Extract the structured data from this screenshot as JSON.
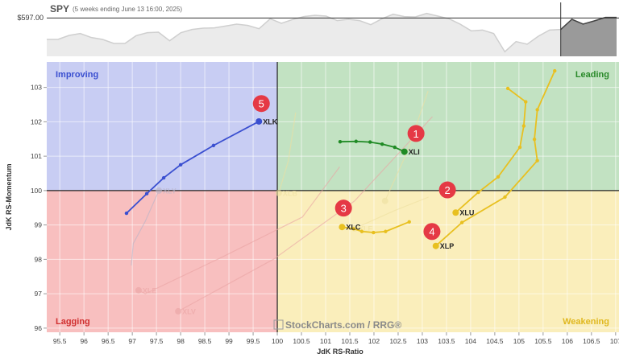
{
  "chart_data": {
    "type": "scatter",
    "subtype": "relative-rotation-graph",
    "benchmark": {
      "symbol": "SPY",
      "subtitle": "(5 weeks ending June 13 16:00, 2025)",
      "reference_label": "$597.00",
      "reference_value": 597,
      "prices": [
        581.0,
        581.0,
        584.0,
        585.4,
        582.4,
        581.0,
        578.0,
        578.0,
        583.8,
        586.0,
        586.4,
        580.0,
        586.0,
        588.4,
        589.4,
        589.6,
        591.0,
        592.4,
        591.4,
        589.0,
        596.4,
        593.0,
        595.8,
        598.0,
        599.0,
        598.4,
        595.0,
        596.0,
        595.0,
        592.0,
        596.4,
        599.8,
        598.0,
        597.8,
        600.4,
        598.4,
        596.4,
        592.4,
        587.4,
        588.0,
        585.4,
        571.8,
        579.4,
        577.4,
        583.4,
        588.0,
        588.4,
        596.0,
        592.4,
        594.8,
        597.4,
        597.4
      ],
      "highlight_from_index": 46
    },
    "xlabel": "JdK RS-Ratio",
    "ylabel": "JdK RS-Momentum",
    "xlim": [
      95.23,
      107.07
    ],
    "ylim": [
      95.88,
      103.74
    ],
    "center": [
      100,
      100
    ],
    "xticks": [
      "95.5",
      "96",
      "96.5",
      "97",
      "97.5",
      "98",
      "98.5",
      "99",
      "99.5",
      "100",
      "100.5",
      "101",
      "101.5",
      "102",
      "102.5",
      "103",
      "103.5",
      "104",
      "104.5",
      "105",
      "105.5",
      "106",
      "106.5",
      "107"
    ],
    "yticks": [
      "96",
      "97",
      "98",
      "99",
      "100",
      "101",
      "102",
      "103"
    ],
    "grid": true,
    "quadrants": {
      "improving": {
        "label": "Improving",
        "color": "#c8cdf3",
        "text_color": "#3a4fd0"
      },
      "leading": {
        "label": "Leading",
        "color": "#c2e2c2",
        "text_color": "#2a8a2a"
      },
      "lagging": {
        "label": "Lagging",
        "color": "#f8bfbf",
        "text_color": "#d03030"
      },
      "weakening": {
        "label": "Weakening",
        "color": "#faeebb",
        "text_color": "#e0b820"
      }
    },
    "watermark": "StockCharts.com / RRG®",
    "series": [
      {
        "name": "XLY",
        "faded": true,
        "color": "#b8b4c8",
        "points": [
          [
            96.98,
            97.82
          ],
          [
            97.02,
            98.46
          ],
          [
            97.27,
            99.11
          ],
          [
            97.55,
            100.0
          ]
        ]
      },
      {
        "name": "XLE",
        "faded": true,
        "color": "#eaa4a4",
        "points": [
          [
            101.29,
            100.69
          ],
          [
            100.52,
            99.23
          ],
          [
            98.85,
            98.06
          ],
          [
            97.27,
            97.0
          ],
          [
            97.13,
            97.1
          ]
        ]
      },
      {
        "name": "XLV",
        "faded": true,
        "color": "#eaa4a4",
        "points": [
          [
            103.21,
            102.15
          ],
          [
            101.6,
            99.7
          ],
          [
            99.93,
            98.01
          ],
          [
            97.95,
            96.49
          ]
        ]
      },
      {
        "name": "XLB",
        "faded": true,
        "color": "#eee0a0",
        "points": [
          [
            100.38,
            102.27
          ],
          [
            100.23,
            100.87
          ],
          [
            100.03,
            99.93
          ]
        ]
      },
      {
        "name": "XLF",
        "faded": true,
        "color": "#eee0a0",
        "points": [
          [
            103.13,
            99.81
          ],
          [
            102.43,
            99.42
          ],
          [
            101.6,
            98.9
          ]
        ]
      },
      {
        "name": "",
        "faded": true,
        "color": "#eee0a0",
        "points": [
          [
            103.12,
            102.9
          ],
          [
            102.68,
            101.1
          ],
          [
            102.23,
            99.7
          ]
        ]
      },
      {
        "name": "XLK",
        "faded": false,
        "color": "#3a4fd0",
        "points": [
          [
            96.88,
            99.34
          ],
          [
            97.3,
            99.91
          ],
          [
            97.65,
            100.37
          ],
          [
            98.0,
            100.75
          ],
          [
            98.68,
            101.31
          ],
          [
            99.62,
            102.01
          ]
        ]
      },
      {
        "name": "XLI",
        "faded": false,
        "color": "#1f8a24",
        "points": [
          [
            101.3,
            101.42
          ],
          [
            101.63,
            101.43
          ],
          [
            101.92,
            101.41
          ],
          [
            102.17,
            101.35
          ],
          [
            102.43,
            101.26
          ],
          [
            102.63,
            101.13
          ]
        ]
      },
      {
        "name": "XLC",
        "faded": false,
        "color": "#e8c020",
        "points": [
          [
            102.73,
            99.09
          ],
          [
            102.24,
            98.81
          ],
          [
            101.99,
            98.78
          ],
          [
            101.75,
            98.81
          ],
          [
            101.58,
            98.89
          ],
          [
            101.34,
            98.94
          ]
        ]
      },
      {
        "name": "XLU",
        "faded": false,
        "color": "#e8c020",
        "points": [
          [
            104.77,
            102.97
          ],
          [
            105.14,
            102.58
          ],
          [
            105.1,
            101.88
          ],
          [
            105.02,
            101.26
          ],
          [
            104.57,
            100.4
          ],
          [
            104.16,
            99.95
          ],
          [
            103.69,
            99.36
          ]
        ]
      },
      {
        "name": "XLP",
        "faded": false,
        "color": "#e8c020",
        "points": [
          [
            105.74,
            103.48
          ],
          [
            105.38,
            102.35
          ],
          [
            105.32,
            101.49
          ],
          [
            105.38,
            100.87
          ],
          [
            104.71,
            99.81
          ],
          [
            103.82,
            99.07
          ],
          [
            103.28,
            98.39
          ]
        ]
      }
    ],
    "annotations": [
      {
        "label": "1",
        "x": 102.87,
        "y": 101.66
      },
      {
        "label": "2",
        "x": 103.52,
        "y": 100.02
      },
      {
        "label": "3",
        "x": 101.37,
        "y": 99.49
      },
      {
        "label": "4",
        "x": 103.2,
        "y": 98.81
      },
      {
        "label": "5",
        "x": 99.67,
        "y": 102.53
      }
    ],
    "annotation_color": "#e53945"
  }
}
